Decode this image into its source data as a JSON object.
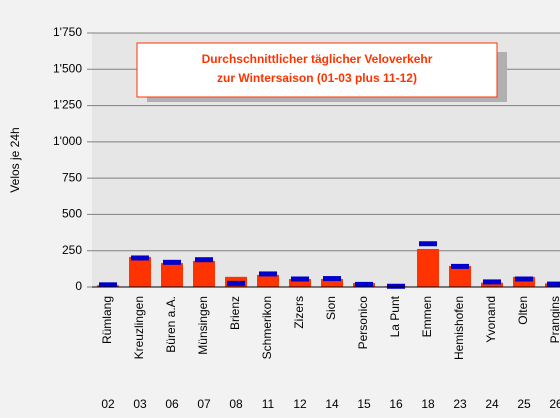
{
  "chart_data": {
    "type": "bar",
    "title": [
      "Durchschnittlicher täglicher Veloverkehr",
      "zur Wintersaison (01-03 plus 11-12)"
    ],
    "y_label": "Velos je 24h",
    "categories": [
      "Rümlang",
      "Kreuzlingen",
      "Büren a.A.",
      "Münsingen",
      "Brienz",
      "Schmerikon",
      "Zizers",
      "Sion",
      "Personico",
      "La Punt",
      "Emmen",
      "Hemishofen",
      "Yvonand",
      "Olten",
      "Prangins"
    ],
    "codes": [
      "02",
      "03",
      "06",
      "07",
      "08",
      "11",
      "12",
      "14",
      "15",
      "16",
      "18",
      "23",
      "24",
      "25",
      "26"
    ],
    "series": [
      {
        "color": "#ff3300",
        "values": [
          12,
          207,
          165,
          180,
          70,
          83,
          55,
          55,
          28,
          5,
          262,
          145,
          30,
          70,
          25
        ]
      },
      {
        "color": "#0000cc",
        "values": [
          15,
          200,
          170,
          188,
          25,
          90,
          55,
          58,
          18,
          5,
          298,
          142,
          35,
          55,
          20
        ]
      }
    ],
    "ylim": [
      0,
      1750
    ],
    "yticks": [
      0,
      250,
      500,
      750,
      {
        "value": 1000,
        "label": "1'000"
      },
      {
        "value": 1250,
        "label": "1'250"
      },
      {
        "value": 1500,
        "label": "1'500"
      },
      {
        "value": 1750,
        "label": "1'750"
      }
    ],
    "grid": true
  }
}
